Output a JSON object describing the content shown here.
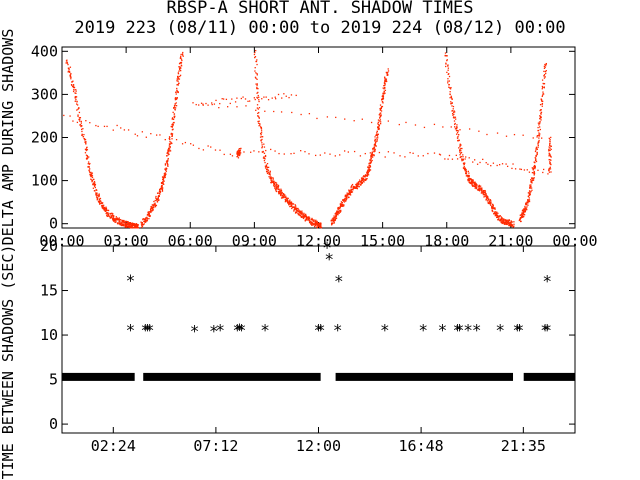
{
  "title": "RBSP-A SHORT ANT. SHADOW TIMES",
  "subtitle": "2019 223 (08/11) 00:00 to 2019 224 (08/12) 00:00",
  "chart_data": [
    {
      "type": "scatter",
      "ylabel": "DELTA AMP DURING SHADOWS",
      "xlim": [
        0,
        24
      ],
      "ylim": [
        -10,
        410
      ],
      "yticks": [
        {
          "v": 0,
          "label": "0"
        },
        {
          "v": 100,
          "label": "100"
        },
        {
          "v": 200,
          "label": "200"
        },
        {
          "v": 300,
          "label": "300"
        },
        {
          "v": 400,
          "label": "400"
        }
      ],
      "xticks": [
        {
          "v": 0,
          "label": "00:00"
        },
        {
          "v": 3,
          "label": "03:00"
        },
        {
          "v": 6,
          "label": "06:00"
        },
        {
          "v": 9,
          "label": "09:00"
        },
        {
          "v": 12,
          "label": "12:00"
        },
        {
          "v": 15,
          "label": "15:00"
        },
        {
          "v": 18,
          "label": "18:00"
        },
        {
          "v": 21,
          "label": "21:00"
        },
        {
          "v": 24,
          "label": "00:00"
        }
      ],
      "color": "#ff2a00",
      "series": [
        {
          "x": [
            0.2,
            0.6,
            1.0,
            1.3,
            1.6,
            1.9,
            2.2,
            2.5,
            2.8,
            3.0,
            3.2,
            3.4,
            3.5
          ],
          "y": [
            380,
            300,
            200,
            120,
            70,
            40,
            22,
            10,
            3,
            0,
            -3,
            -5,
            -5
          ]
        },
        {
          "x": [
            3.7,
            4.0,
            4.3,
            4.6,
            4.8,
            5.0,
            5.2,
            5.4,
            5.6
          ],
          "y": [
            0,
            20,
            45,
            80,
            120,
            180,
            250,
            330,
            400
          ]
        },
        {
          "x": [
            9.0,
            9.2,
            9.5,
            9.8,
            10.1,
            10.4,
            10.7,
            11.0,
            11.3,
            11.6,
            11.9,
            12.1
          ],
          "y": [
            400,
            240,
            140,
            100,
            80,
            60,
            45,
            30,
            18,
            8,
            0,
            -5
          ]
        },
        {
          "x": [
            12.6,
            12.8,
            13.0,
            13.3,
            13.6,
            13.9,
            14.2,
            14.4,
            14.6,
            14.8,
            15.0,
            15.2
          ],
          "y": [
            5,
            20,
            40,
            65,
            85,
            95,
            110,
            140,
            180,
            230,
            300,
            360
          ]
        },
        {
          "x": [
            17.9,
            18.2,
            18.5,
            18.8,
            19.1,
            19.3,
            19.6,
            19.9,
            20.2,
            20.5,
            20.8,
            21.1
          ],
          "y": [
            400,
            280,
            200,
            130,
            100,
            90,
            80,
            60,
            30,
            10,
            5,
            0
          ]
        },
        {
          "x": [
            21.4,
            21.6,
            21.8,
            22.0,
            22.2,
            22.4,
            22.6
          ],
          "y": [
            10,
            30,
            60,
            110,
            180,
            270,
            380
          ]
        },
        {
          "x": [
            0.1,
            8.2,
            8.3,
            17.6,
            22.8,
            22.8,
            6.1,
            11.0
          ],
          "y": [
            250,
            160,
            170,
            160,
            120,
            200,
            280,
            300
          ]
        }
      ]
    },
    {
      "type": "scatter",
      "ylabel": "TIME BETWEEN SHADOWS (SEC)",
      "xlim": [
        0,
        24
      ],
      "ylim": [
        -1,
        20
      ],
      "yticks": [
        {
          "v": 0,
          "label": "0"
        },
        {
          "v": 5,
          "label": "5"
        },
        {
          "v": 10,
          "label": "10"
        },
        {
          "v": 15,
          "label": "15"
        },
        {
          "v": 20,
          "label": "20"
        }
      ],
      "xticks": [
        {
          "v": 2.4,
          "label": "02:24"
        },
        {
          "v": 7.2,
          "label": "07:12"
        },
        {
          "v": 12.0,
          "label": "12:00"
        },
        {
          "v": 16.8,
          "label": "16:48"
        },
        {
          "v": 21.583,
          "label": "21:35"
        }
      ],
      "marker": "*",
      "baseline_value": 5.3,
      "baseline_segments": [
        [
          0.0,
          3.4
        ],
        [
          3.8,
          12.1
        ],
        [
          12.8,
          21.1
        ],
        [
          21.6,
          24.0
        ]
      ],
      "points": {
        "x": [
          3.2,
          3.2,
          3.9,
          4.0,
          4.1,
          6.2,
          7.1,
          7.4,
          8.2,
          8.3,
          8.4,
          9.5,
          12.0,
          12.1,
          12.4,
          12.5,
          12.9,
          12.95,
          15.1,
          16.9,
          17.8,
          18.5,
          18.6,
          19.0,
          19.4,
          20.5,
          21.3,
          21.4,
          22.6,
          22.7,
          22.7
        ],
        "y": [
          16.2,
          10.6,
          10.6,
          10.6,
          10.6,
          10.5,
          10.5,
          10.6,
          10.6,
          10.7,
          10.6,
          10.6,
          10.6,
          10.6,
          19.9,
          18.6,
          10.6,
          16.1,
          10.6,
          10.6,
          10.6,
          10.6,
          10.6,
          10.6,
          10.6,
          10.6,
          10.6,
          10.6,
          10.6,
          16.1,
          10.6
        ]
      },
      "color": "#000000"
    }
  ]
}
